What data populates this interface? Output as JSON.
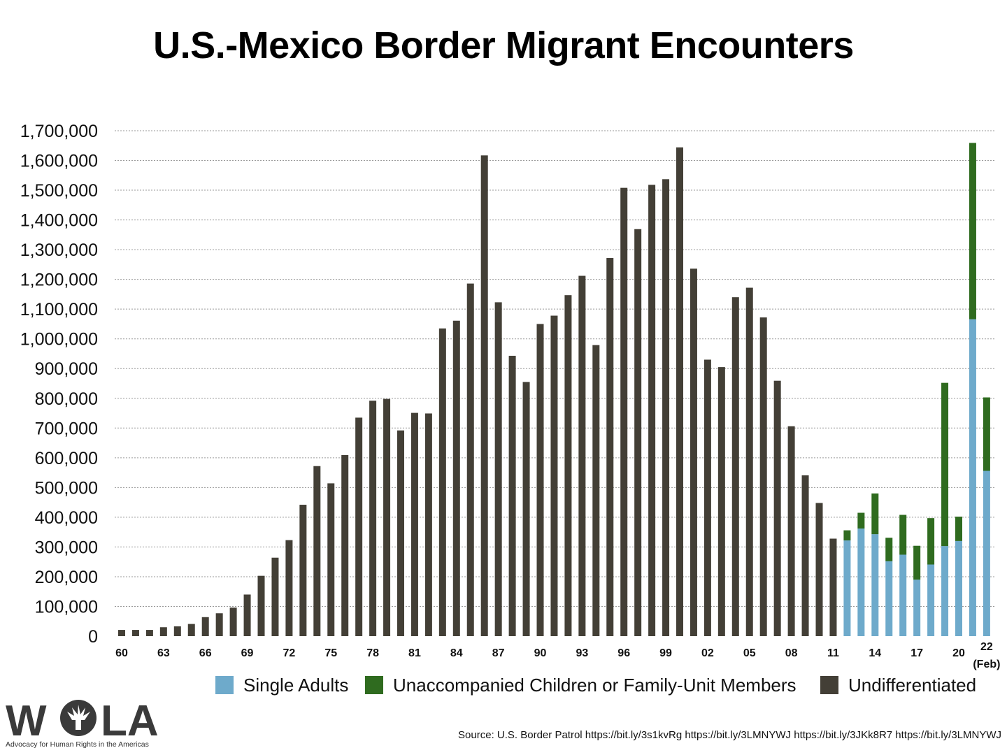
{
  "chart_data": {
    "type": "bar",
    "stacked": true,
    "title": "U.S.-Mexico Border Migrant Encounters",
    "xlabel": "",
    "ylabel": "",
    "ylim": [
      0,
      1700000
    ],
    "yticks": [
      0,
      100000,
      200000,
      300000,
      400000,
      500000,
      600000,
      700000,
      800000,
      900000,
      1000000,
      1100000,
      1200000,
      1300000,
      1400000,
      1500000,
      1600000,
      1700000
    ],
    "ytick_labels": [
      "0",
      "100,000",
      "200,000",
      "300,000",
      "400,000",
      "500,000",
      "600,000",
      "700,000",
      "800,000",
      "900,000",
      "1,000,000",
      "1,100,000",
      "1,200,000",
      "1,300,000",
      "1,400,000",
      "1,500,000",
      "1,600,000",
      "1,700,000"
    ],
    "grid": true,
    "legend_position": "bottom",
    "categories": [
      "60",
      "61",
      "62",
      "63",
      "64",
      "65",
      "66",
      "67",
      "68",
      "69",
      "70",
      "71",
      "72",
      "73",
      "74",
      "75",
      "76",
      "77",
      "78",
      "79",
      "80",
      "81",
      "82",
      "83",
      "84",
      "85",
      "86",
      "87",
      "88",
      "89",
      "90",
      "91",
      "92",
      "93",
      "94",
      "95",
      "96",
      "97",
      "98",
      "99",
      "00",
      "01",
      "02",
      "03",
      "04",
      "05",
      "06",
      "07",
      "08",
      "09",
      "10",
      "11",
      "12",
      "13",
      "14",
      "15",
      "16",
      "17",
      "18",
      "19",
      "20",
      "21",
      "22 (Feb)"
    ],
    "tick_labels": [
      {
        "index": 0,
        "text": "60"
      },
      {
        "index": 3,
        "text": "63"
      },
      {
        "index": 6,
        "text": "66"
      },
      {
        "index": 9,
        "text": "69"
      },
      {
        "index": 12,
        "text": "72"
      },
      {
        "index": 15,
        "text": "75"
      },
      {
        "index": 18,
        "text": "78"
      },
      {
        "index": 21,
        "text": "81"
      },
      {
        "index": 24,
        "text": "84"
      },
      {
        "index": 27,
        "text": "87"
      },
      {
        "index": 30,
        "text": "90"
      },
      {
        "index": 33,
        "text": "93"
      },
      {
        "index": 36,
        "text": "96"
      },
      {
        "index": 39,
        "text": "99"
      },
      {
        "index": 42,
        "text": "02"
      },
      {
        "index": 45,
        "text": "05"
      },
      {
        "index": 48,
        "text": "08"
      },
      {
        "index": 51,
        "text": "11"
      },
      {
        "index": 54,
        "text": "14"
      },
      {
        "index": 57,
        "text": "17"
      },
      {
        "index": 60,
        "text": "20"
      },
      {
        "index": 62,
        "text": "22",
        "subtext": "(Feb)"
      }
    ],
    "series": [
      {
        "name": "Single Adults",
        "color": "#6eaacb",
        "values": [
          0,
          0,
          0,
          0,
          0,
          0,
          0,
          0,
          0,
          0,
          0,
          0,
          0,
          0,
          0,
          0,
          0,
          0,
          0,
          0,
          0,
          0,
          0,
          0,
          0,
          0,
          0,
          0,
          0,
          0,
          0,
          0,
          0,
          0,
          0,
          0,
          0,
          0,
          0,
          0,
          0,
          0,
          0,
          0,
          0,
          0,
          0,
          0,
          0,
          0,
          0,
          0,
          322000,
          362000,
          343000,
          252000,
          274000,
          190000,
          241000,
          303000,
          320000,
          1066000,
          556000
        ]
      },
      {
        "name": "Unaccompanied Children or Family-Unit Members",
        "color": "#2f6b1f",
        "values": [
          0,
          0,
          0,
          0,
          0,
          0,
          0,
          0,
          0,
          0,
          0,
          0,
          0,
          0,
          0,
          0,
          0,
          0,
          0,
          0,
          0,
          0,
          0,
          0,
          0,
          0,
          0,
          0,
          0,
          0,
          0,
          0,
          0,
          0,
          0,
          0,
          0,
          0,
          0,
          0,
          0,
          0,
          0,
          0,
          0,
          0,
          0,
          0,
          0,
          0,
          0,
          0,
          34000,
          53000,
          137000,
          79000,
          134000,
          114000,
          156000,
          549000,
          82000,
          593000,
          247000
        ]
      },
      {
        "name": "Undifferentiated",
        "color": "#433f36",
        "values": [
          21000,
          21000,
          21000,
          30000,
          33000,
          41000,
          64000,
          77000,
          96000,
          140000,
          203000,
          264000,
          323000,
          442000,
          572000,
          514000,
          609000,
          735000,
          792000,
          798000,
          692000,
          751000,
          749000,
          1035000,
          1061000,
          1186000,
          1617000,
          1123000,
          943000,
          855000,
          1050000,
          1078000,
          1147000,
          1212000,
          979000,
          1272000,
          1508000,
          1369000,
          1518000,
          1537000,
          1644000,
          1236000,
          930000,
          905000,
          1140000,
          1172000,
          1072000,
          859000,
          706000,
          541000,
          448000,
          328000,
          0,
          0,
          0,
          0,
          0,
          0,
          0,
          0,
          0,
          0,
          0
        ]
      }
    ]
  },
  "source_text": "Source: U.S. Border Patrol https://bit.ly/3s1kvRg https://bit.ly/3LMNYWJ  https://bit.ly/3JKk8R7 https://bit.ly/3LMNYWJ",
  "logo": {
    "name": "WOLA",
    "tagline": "Advocacy for Human Rights in the Americas",
    "icon": "eagle-icon",
    "color": "#3a3a3a"
  }
}
